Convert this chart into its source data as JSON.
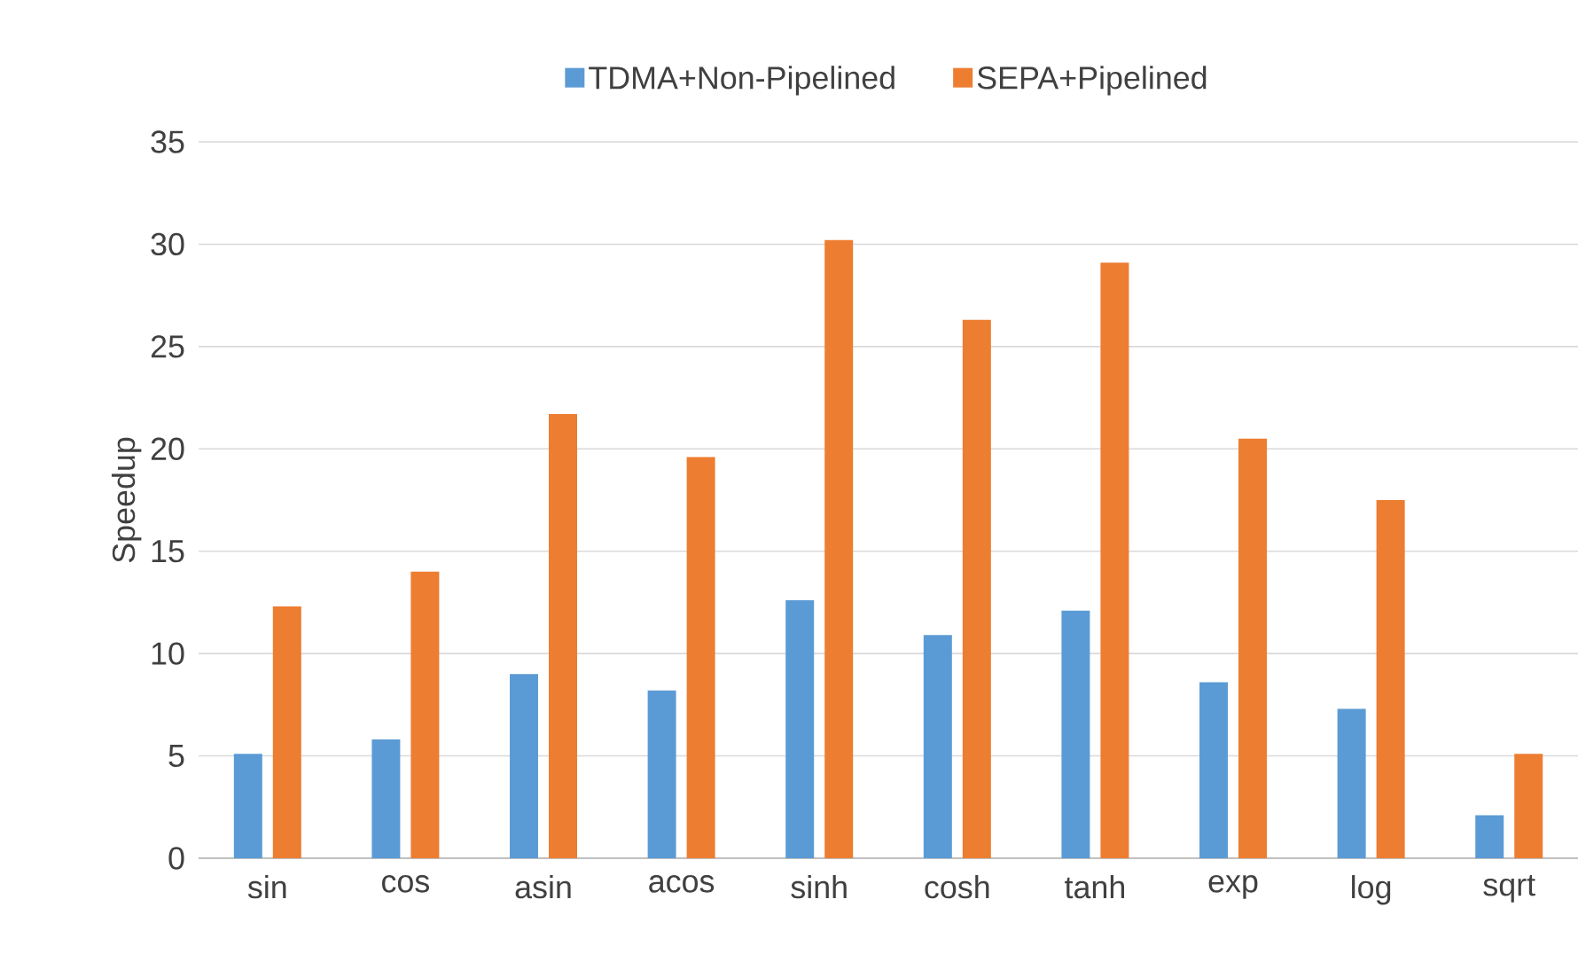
{
  "chart_data": {
    "type": "bar",
    "ylabel": "Speedup",
    "categories": [
      "sin",
      "cos",
      "asin",
      "acos",
      "sinh",
      "cosh",
      "tanh",
      "exp",
      "log",
      "sqrt"
    ],
    "series": [
      {
        "name": "TDMA+Non-Pipelined",
        "color": "#5b9bd5",
        "values": [
          5.1,
          5.8,
          9.0,
          8.2,
          12.6,
          10.9,
          12.1,
          8.6,
          7.3,
          2.1
        ]
      },
      {
        "name": "SEPA+Pipelined",
        "color": "#ed7d31",
        "values": [
          12.3,
          14.0,
          21.7,
          19.6,
          30.2,
          26.3,
          29.1,
          20.5,
          17.5,
          5.1
        ]
      }
    ],
    "ylim": [
      0,
      35
    ],
    "yticks": [
      0,
      5,
      10,
      15,
      20,
      25,
      30,
      35
    ],
    "grid": "y",
    "legend": "top"
  }
}
